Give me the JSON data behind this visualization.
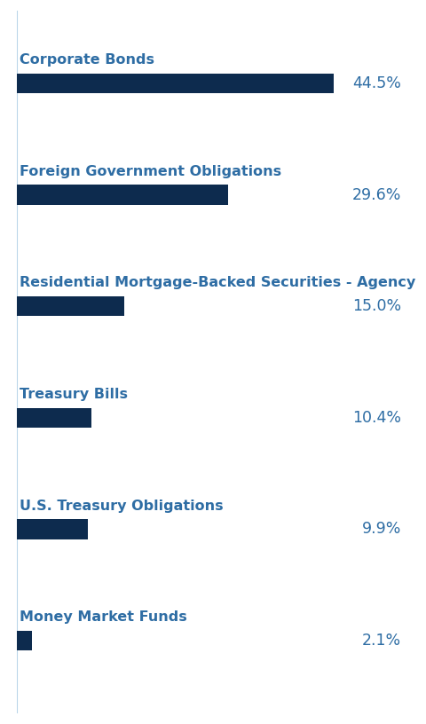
{
  "categories": [
    "Corporate Bonds",
    "Foreign Government Obligations",
    "Residential Mortgage-Backed Securities - Agency",
    "Treasury Bills",
    "U.S. Treasury Obligations",
    "Money Market Funds"
  ],
  "values": [
    44.5,
    29.6,
    15.0,
    10.4,
    9.9,
    2.1
  ],
  "labels": [
    "44.5%",
    "29.6%",
    "15.0%",
    "10.4%",
    "9.9%",
    "2.1%"
  ],
  "bar_color": "#0d2b4e",
  "label_color": "#2e6da4",
  "cat_color": "#2e6da4",
  "vline_color": "#b8d4e8",
  "background_color": "#ffffff",
  "xlim": [
    0,
    55
  ],
  "bar_height": 0.18,
  "figsize": [
    4.8,
    8.16
  ],
  "dpi": 100,
  "cat_fontsize": 11.5,
  "val_fontsize": 12.5
}
